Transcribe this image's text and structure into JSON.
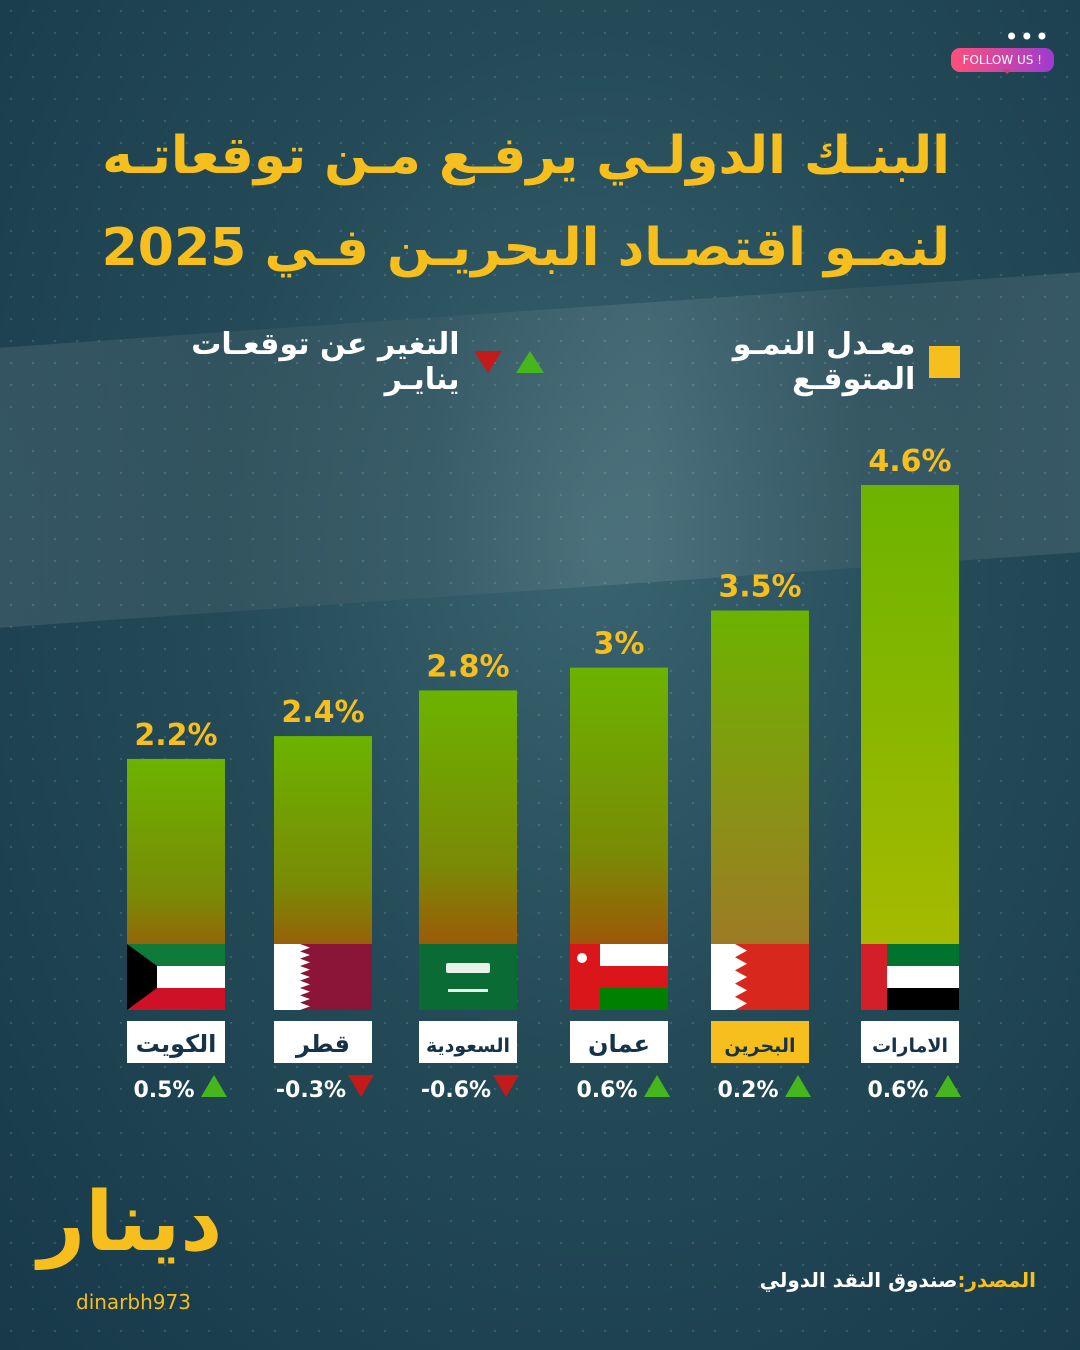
{
  "title_lines": [
    "البنـك الدولـي يرفـع مـن توقعاتـه",
    "لنمـو اقتصـاد البحريـن فـي 2025"
  ],
  "follow_label": "FOLLOW US !",
  "legend": {
    "growth_label": "معـدل النمـو المتوقـع",
    "change_label": "التغير عن توقعـات ينايـر"
  },
  "colors": {
    "accent": "#f7bf1e",
    "up": "#45b71d",
    "down": "#c31a1a",
    "bar_top": "#6cb300",
    "bar_bottom": "#b8330a"
  },
  "source": {
    "prefix": "المصدر:",
    "name": "صندوق النقد الدولي"
  },
  "logo": {
    "text": "دينار",
    "handle": "dinarbh973"
  },
  "chart_data": {
    "type": "bar",
    "categories": [
      "الكويت",
      "قطر",
      "السعودية",
      "عمان",
      "البحرين",
      "الامارات"
    ],
    "series": [
      {
        "name": "معـدل النمـو المتوقـع",
        "values": [
          2.2,
          2.4,
          2.8,
          3.0,
          3.5,
          4.6
        ]
      },
      {
        "name": "التغير عن توقعـات ينايـر",
        "values": [
          0.5,
          -0.3,
          -0.6,
          0.6,
          0.2,
          0.6
        ]
      }
    ],
    "value_labels": [
      "2.2%",
      "2.4%",
      "2.8%",
      "3%",
      "3.5%",
      "4.6%"
    ],
    "change_labels": [
      "0.5%",
      "-0.3%",
      "-0.6%",
      "0.6%",
      "0.2%",
      "0.6%"
    ],
    "change_direction": [
      "up",
      "down",
      "down",
      "up",
      "up",
      "up"
    ],
    "flags": [
      "kuwait",
      "qatar",
      "saudi",
      "oman",
      "bahrain",
      "uae"
    ],
    "highlight_category": "البحرين",
    "grid": false
  }
}
